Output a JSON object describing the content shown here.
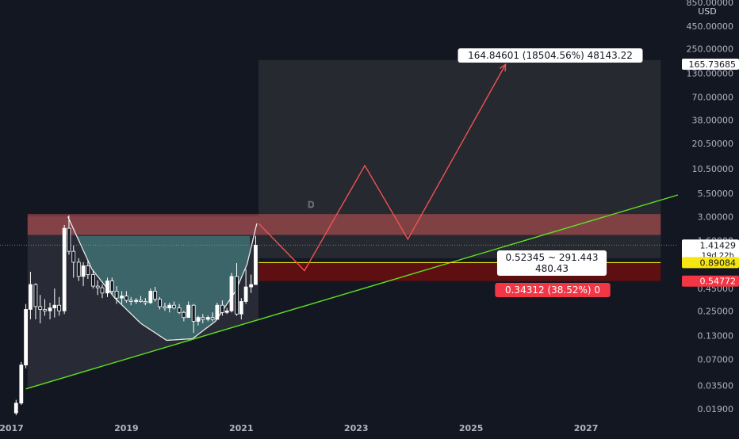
{
  "chart_data": {
    "type": "candlestick",
    "currency": "USD",
    "y_scale": "log",
    "ylim": [
      0.016,
      900
    ],
    "xlim": [
      2016.8,
      2028.6
    ],
    "y_ticks": [
      {
        "label": "850.00000",
        "value": 850
      },
      {
        "label": "450.00000",
        "value": 450
      },
      {
        "label": "250.00000",
        "value": 250
      },
      {
        "label": "130.00000",
        "value": 130
      },
      {
        "label": "70.00000",
        "value": 70
      },
      {
        "label": "38.00000",
        "value": 38
      },
      {
        "label": "20.50000",
        "value": 20.5
      },
      {
        "label": "10.50000",
        "value": 10.5
      },
      {
        "label": "5.50000",
        "value": 5.5
      },
      {
        "label": "3.00000",
        "value": 3.0
      },
      {
        "label": "1.60000",
        "value": 1.6
      },
      {
        "label": "0.45000",
        "value": 0.45
      },
      {
        "label": "0.25000",
        "value": 0.25
      },
      {
        "label": "0.13000",
        "value": 0.13
      },
      {
        "label": "0.07000",
        "value": 0.07
      },
      {
        "label": "0.03500",
        "value": 0.035
      },
      {
        "label": "0.01900",
        "value": 0.019
      }
    ],
    "x_ticks": [
      "2017",
      "2019",
      "2021",
      "2023",
      "2025",
      "2027"
    ],
    "price_labels": [
      {
        "label": "165.73685",
        "value": 165.73685,
        "bg": "#ffffff",
        "fg": "#131722"
      },
      {
        "label": "1.41429",
        "sub": "19d 22h",
        "value": 1.41429,
        "bg": "#ffffff",
        "fg": "#131722"
      },
      {
        "label": "0.89084",
        "value": 0.89084,
        "bg": "#f5e512",
        "fg": "#131722"
      },
      {
        "label": "0.54772",
        "value": 0.54772,
        "bg": "#f23645",
        "fg": "#ffffff"
      }
    ],
    "last_price": 1.41429,
    "target_label": "164.84601 (18504.56%) 48143.22",
    "entry_label_1": "0.52345 ~ 291.443",
    "entry_label_2": "480.43",
    "stop_label": "0.34312 (38.52%) 0",
    "pattern_point_label": "D",
    "colors": {
      "background": "#131722",
      "up": "#ffffff",
      "down": "#ffffff",
      "support": "#5fe01f",
      "projection": "#ef5350",
      "cup_fill": "#4a8c8c",
      "resistance_zone": "#f06060",
      "entry_line": "#f5e512",
      "stop_zone": "#5a0a0a",
      "target_zone": "#2a2d33"
    },
    "candles": [
      {
        "t": 2017.08,
        "o": 0.017,
        "h": 0.024,
        "l": 0.016,
        "c": 0.022
      },
      {
        "t": 2017.17,
        "o": 0.022,
        "h": 0.065,
        "l": 0.021,
        "c": 0.06
      },
      {
        "t": 2017.25,
        "o": 0.06,
        "h": 0.3,
        "l": 0.055,
        "c": 0.26
      },
      {
        "t": 2017.33,
        "o": 0.26,
        "h": 0.7,
        "l": 0.2,
        "c": 0.5
      },
      {
        "t": 2017.42,
        "o": 0.5,
        "h": 0.52,
        "l": 0.2,
        "c": 0.28
      },
      {
        "t": 2017.5,
        "o": 0.28,
        "h": 0.38,
        "l": 0.18,
        "c": 0.26
      },
      {
        "t": 2017.58,
        "o": 0.26,
        "h": 0.34,
        "l": 0.22,
        "c": 0.25
      },
      {
        "t": 2017.67,
        "o": 0.25,
        "h": 0.31,
        "l": 0.2,
        "c": 0.27
      },
      {
        "t": 2017.75,
        "o": 0.27,
        "h": 0.45,
        "l": 0.21,
        "c": 0.29
      },
      {
        "t": 2017.83,
        "o": 0.29,
        "h": 0.36,
        "l": 0.22,
        "c": 0.25
      },
      {
        "t": 2017.92,
        "o": 0.25,
        "h": 2.4,
        "l": 0.23,
        "c": 2.2
      },
      {
        "t": 2018.0,
        "o": 2.2,
        "h": 3.1,
        "l": 1.1,
        "c": 1.2
      },
      {
        "t": 2018.08,
        "o": 1.2,
        "h": 1.4,
        "l": 0.6,
        "c": 0.9
      },
      {
        "t": 2018.17,
        "o": 0.9,
        "h": 1.0,
        "l": 0.55,
        "c": 0.62
      },
      {
        "t": 2018.25,
        "o": 0.62,
        "h": 0.9,
        "l": 0.48,
        "c": 0.82
      },
      {
        "t": 2018.33,
        "o": 0.82,
        "h": 0.95,
        "l": 0.58,
        "c": 0.65
      },
      {
        "t": 2018.42,
        "o": 0.65,
        "h": 0.72,
        "l": 0.45,
        "c": 0.48
      },
      {
        "t": 2018.5,
        "o": 0.48,
        "h": 0.56,
        "l": 0.38,
        "c": 0.46
      },
      {
        "t": 2018.58,
        "o": 0.46,
        "h": 0.5,
        "l": 0.35,
        "c": 0.4
      },
      {
        "t": 2018.67,
        "o": 0.4,
        "h": 0.6,
        "l": 0.36,
        "c": 0.55
      },
      {
        "t": 2018.75,
        "o": 0.55,
        "h": 0.6,
        "l": 0.38,
        "c": 0.42
      },
      {
        "t": 2018.83,
        "o": 0.42,
        "h": 0.48,
        "l": 0.3,
        "c": 0.35
      },
      {
        "t": 2018.92,
        "o": 0.35,
        "h": 0.42,
        "l": 0.3,
        "c": 0.37
      },
      {
        "t": 2019.0,
        "o": 0.37,
        "h": 0.42,
        "l": 0.31,
        "c": 0.33
      },
      {
        "t": 2019.08,
        "o": 0.33,
        "h": 0.36,
        "l": 0.29,
        "c": 0.32
      },
      {
        "t": 2019.17,
        "o": 0.32,
        "h": 0.35,
        "l": 0.3,
        "c": 0.33
      },
      {
        "t": 2019.25,
        "o": 0.33,
        "h": 0.37,
        "l": 0.31,
        "c": 0.32
      },
      {
        "t": 2019.33,
        "o": 0.32,
        "h": 0.35,
        "l": 0.29,
        "c": 0.31
      },
      {
        "t": 2019.42,
        "o": 0.31,
        "h": 0.45,
        "l": 0.3,
        "c": 0.42
      },
      {
        "t": 2019.5,
        "o": 0.42,
        "h": 0.47,
        "l": 0.32,
        "c": 0.34
      },
      {
        "t": 2019.58,
        "o": 0.34,
        "h": 0.36,
        "l": 0.26,
        "c": 0.28
      },
      {
        "t": 2019.67,
        "o": 0.28,
        "h": 0.31,
        "l": 0.25,
        "c": 0.27
      },
      {
        "t": 2019.75,
        "o": 0.27,
        "h": 0.31,
        "l": 0.24,
        "c": 0.29
      },
      {
        "t": 2019.83,
        "o": 0.29,
        "h": 0.32,
        "l": 0.26,
        "c": 0.27
      },
      {
        "t": 2019.92,
        "o": 0.27,
        "h": 0.3,
        "l": 0.23,
        "c": 0.24
      },
      {
        "t": 2020.0,
        "o": 0.24,
        "h": 0.25,
        "l": 0.19,
        "c": 0.21
      },
      {
        "t": 2020.08,
        "o": 0.21,
        "h": 0.32,
        "l": 0.21,
        "c": 0.29
      },
      {
        "t": 2020.17,
        "o": 0.29,
        "h": 0.3,
        "l": 0.14,
        "c": 0.19
      },
      {
        "t": 2020.25,
        "o": 0.19,
        "h": 0.22,
        "l": 0.17,
        "c": 0.21
      },
      {
        "t": 2020.33,
        "o": 0.21,
        "h": 0.23,
        "l": 0.18,
        "c": 0.2
      },
      {
        "t": 2020.42,
        "o": 0.2,
        "h": 0.22,
        "l": 0.19,
        "c": 0.21
      },
      {
        "t": 2020.5,
        "o": 0.21,
        "h": 0.24,
        "l": 0.19,
        "c": 0.2
      },
      {
        "t": 2020.58,
        "o": 0.2,
        "h": 0.31,
        "l": 0.2,
        "c": 0.29
      },
      {
        "t": 2020.67,
        "o": 0.29,
        "h": 0.33,
        "l": 0.22,
        "c": 0.24
      },
      {
        "t": 2020.75,
        "o": 0.24,
        "h": 0.27,
        "l": 0.23,
        "c": 0.25
      },
      {
        "t": 2020.83,
        "o": 0.25,
        "h": 0.68,
        "l": 0.24,
        "c": 0.62
      },
      {
        "t": 2020.92,
        "o": 0.62,
        "h": 0.88,
        "l": 0.22,
        "c": 0.23
      },
      {
        "t": 2021.0,
        "o": 0.23,
        "h": 0.35,
        "l": 0.2,
        "c": 0.32
      },
      {
        "t": 2021.08,
        "o": 0.32,
        "h": 0.75,
        "l": 0.3,
        "c": 0.47
      },
      {
        "t": 2021.17,
        "o": 0.47,
        "h": 0.65,
        "l": 0.4,
        "c": 0.5
      },
      {
        "t": 2021.25,
        "o": 0.5,
        "h": 1.8,
        "l": 0.5,
        "c": 1.41
      }
    ],
    "support_line": {
      "x1": 2017.25,
      "y1": 0.032,
      "x2": 2028.6,
      "y2": 5.3
    },
    "cup_curve": [
      {
        "t": 2017.98,
        "v": 3.0
      },
      {
        "t": 2018.4,
        "v": 0.75
      },
      {
        "t": 2018.8,
        "v": 0.35
      },
      {
        "t": 2019.25,
        "v": 0.18
      },
      {
        "t": 2019.7,
        "v": 0.115
      },
      {
        "t": 2020.15,
        "v": 0.12
      },
      {
        "t": 2020.55,
        "v": 0.19
      },
      {
        "t": 2020.9,
        "v": 0.42
      },
      {
        "t": 2021.1,
        "v": 0.85
      },
      {
        "t": 2021.27,
        "v": 2.5
      }
    ],
    "cup_fill_zone": {
      "t1": 2018.12,
      "t2": 2021.15,
      "top": 1.8,
      "bottom_curve": true
    },
    "projection_path": [
      {
        "t": 2021.3,
        "v": 2.5
      },
      {
        "t": 2022.1,
        "v": 0.72
      },
      {
        "t": 2023.15,
        "v": 11.5
      },
      {
        "t": 2023.9,
        "v": 1.65
      },
      {
        "t": 2025.6,
        "v": 165
      }
    ],
    "target_zone": {
      "t1": 2021.3,
      "t2": 2028.3,
      "top": 185,
      "bottom": 1.0
    },
    "resistance_zone": {
      "t1": 2017.28,
      "t2": 2028.3,
      "top": 3.2,
      "bottom": 1.85
    },
    "entry_zone": {
      "t1": 2021.3,
      "t2": 2028.3,
      "top": 0.89,
      "bottom": 0.548
    },
    "entry_line_value": 0.89084,
    "left_triangle": {
      "t1": 2017.28,
      "top": 3.0
    }
  }
}
